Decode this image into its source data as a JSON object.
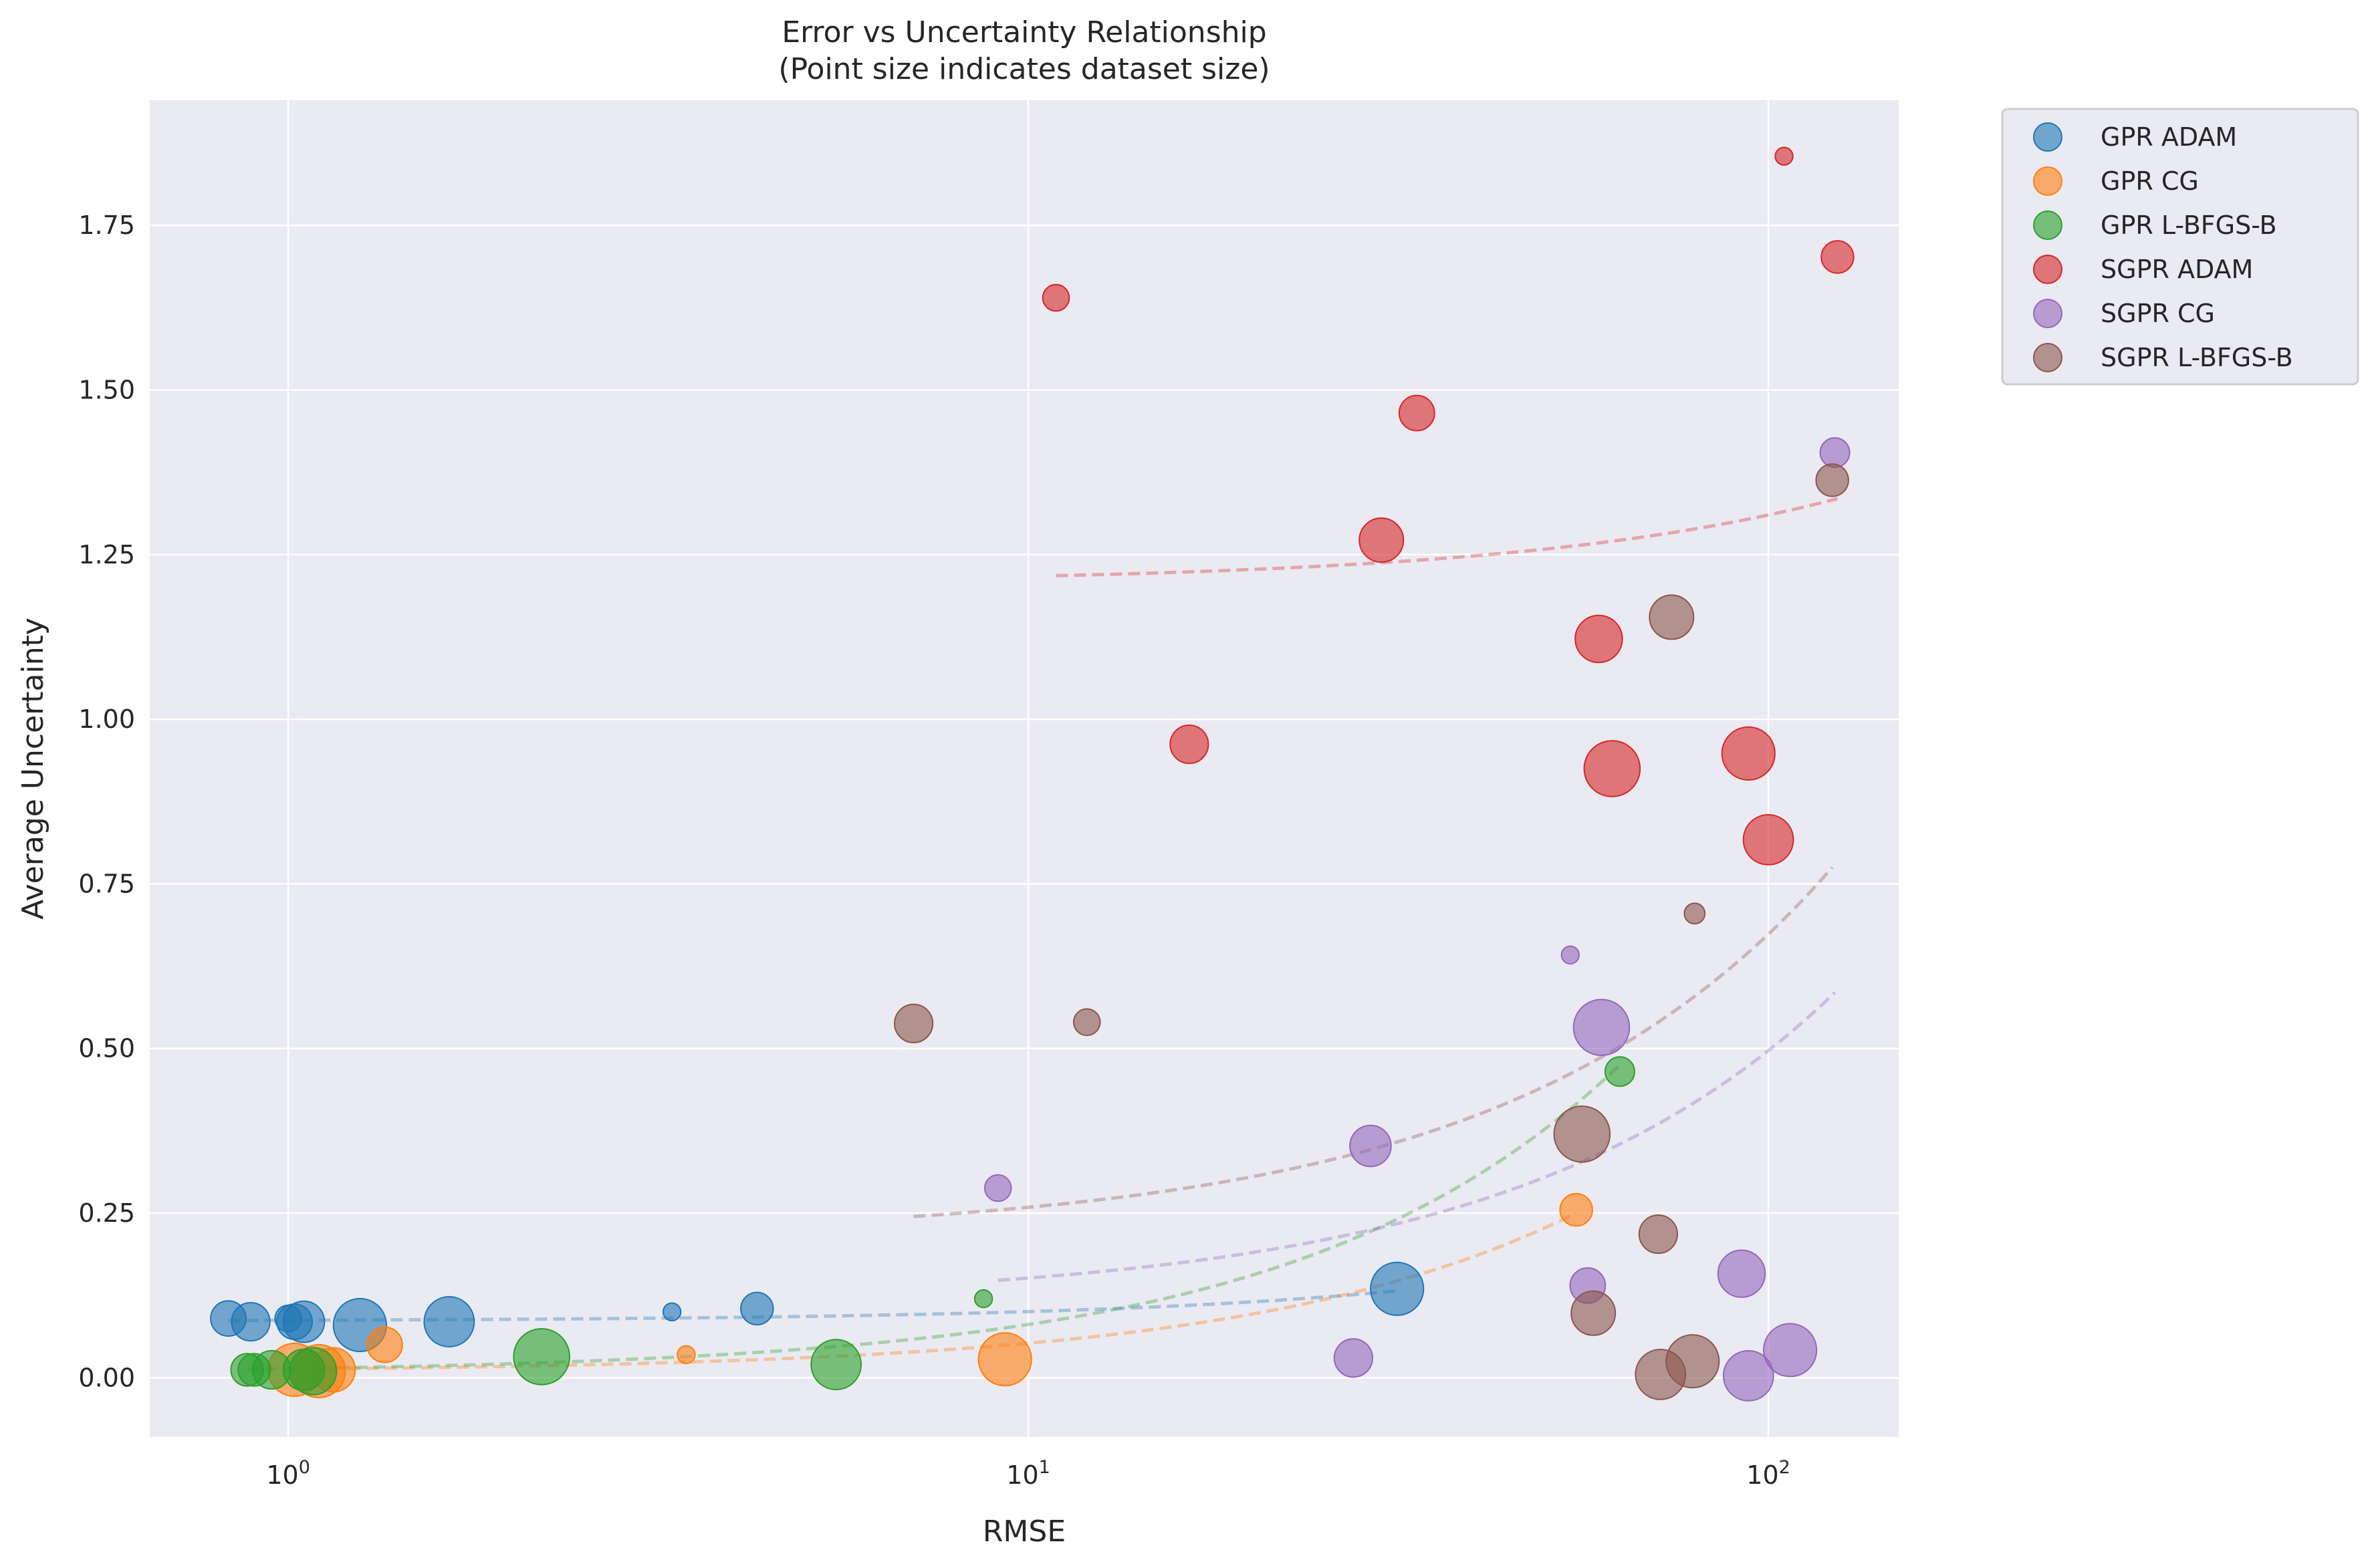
{
  "chart_data": {
    "type": "scatter",
    "title": "Error vs Uncertainty Relationship",
    "subtitle": "(Point size indicates dataset size)",
    "xlabel": "RMSE",
    "ylabel": "Average Uncertainty",
    "xscale": "log",
    "xlim": [
      0.65,
      150
    ],
    "ylim": [
      -0.09,
      1.94
    ],
    "x_ticks": [
      {
        "v": 1,
        "b": "10",
        "e": "0"
      },
      {
        "v": 10,
        "b": "10",
        "e": "1"
      },
      {
        "v": 100,
        "b": "10",
        "e": "2"
      }
    ],
    "y_ticks": [
      {
        "v": 0,
        "label": "0.00"
      },
      {
        "v": 0.25,
        "label": "0.25"
      },
      {
        "v": 0.5,
        "label": "0.50"
      },
      {
        "v": 0.75,
        "label": "0.75"
      },
      {
        "v": 1.0,
        "label": "1.00"
      },
      {
        "v": 1.25,
        "label": "1.25"
      },
      {
        "v": 1.5,
        "label": "1.50"
      },
      {
        "v": 1.75,
        "label": "1.75"
      }
    ],
    "grid": true,
    "legend_position": "outside-top-right",
    "size_encodes": "dataset size (relative marker size)",
    "series": [
      {
        "name": "GPR ADAM",
        "color": "#1f77b4",
        "points": [
          {
            "x": 0.83,
            "y": 0.09,
            "s": 12
          },
          {
            "x": 0.89,
            "y": 0.085,
            "s": 13
          },
          {
            "x": 1.0,
            "y": 0.09,
            "s": 9
          },
          {
            "x": 1.02,
            "y": 0.085,
            "s": 12
          },
          {
            "x": 1.05,
            "y": 0.085,
            "s": 14
          },
          {
            "x": 1.25,
            "y": 0.08,
            "s": 18
          },
          {
            "x": 1.65,
            "y": 0.085,
            "s": 17
          },
          {
            "x": 3.3,
            "y": 0.1,
            "s": 6
          },
          {
            "x": 4.3,
            "y": 0.105,
            "s": 11
          },
          {
            "x": 31.5,
            "y": 0.135,
            "s": 18
          }
        ],
        "trend": {
          "x0": 0.83,
          "x1": 31.5,
          "y0": 0.087,
          "y1": 0.132
        }
      },
      {
        "name": "GPR CG",
        "color": "#ff7f0e",
        "points": [
          {
            "x": 1.02,
            "y": 0.012,
            "s": 18
          },
          {
            "x": 1.1,
            "y": 0.01,
            "s": 18
          },
          {
            "x": 1.15,
            "y": 0.012,
            "s": 15
          },
          {
            "x": 1.35,
            "y": 0.05,
            "s": 12
          },
          {
            "x": 3.45,
            "y": 0.035,
            "s": 6
          },
          {
            "x": 9.3,
            "y": 0.028,
            "s": 18
          },
          {
            "x": 55.0,
            "y": 0.255,
            "s": 11
          }
        ],
        "trend": {
          "x0": 1.02,
          "x1": 55.0,
          "y0": 0.013,
          "y1": 0.25
        }
      },
      {
        "name": "GPR L-BFGS-B",
        "color": "#2ca02c",
        "points": [
          {
            "x": 0.88,
            "y": 0.012,
            "s": 11
          },
          {
            "x": 0.9,
            "y": 0.012,
            "s": 11
          },
          {
            "x": 0.95,
            "y": 0.012,
            "s": 13
          },
          {
            "x": 1.05,
            "y": 0.012,
            "s": 14
          },
          {
            "x": 1.08,
            "y": 0.01,
            "s": 16
          },
          {
            "x": 2.2,
            "y": 0.032,
            "s": 19
          },
          {
            "x": 5.5,
            "y": 0.02,
            "s": 17
          },
          {
            "x": 8.7,
            "y": 0.12,
            "s": 6
          },
          {
            "x": 63.0,
            "y": 0.465,
            "s": 10
          }
        ],
        "trend": {
          "x0": 0.88,
          "x1": 63.0,
          "y0": 0.013,
          "y1": 0.475
        }
      },
      {
        "name": "SGPR ADAM",
        "color": "#d62728",
        "points": [
          {
            "x": 10.9,
            "y": 1.64,
            "s": 9
          },
          {
            "x": 16.5,
            "y": 0.962,
            "s": 13
          },
          {
            "x": 30.0,
            "y": 1.272,
            "s": 15
          },
          {
            "x": 33.5,
            "y": 1.465,
            "s": 12
          },
          {
            "x": 59.0,
            "y": 1.122,
            "s": 16
          },
          {
            "x": 61.5,
            "y": 0.925,
            "s": 19
          },
          {
            "x": 94.0,
            "y": 0.948,
            "s": 18
          },
          {
            "x": 100.0,
            "y": 0.817,
            "s": 17
          },
          {
            "x": 105.0,
            "y": 1.855,
            "s": 6
          },
          {
            "x": 124.0,
            "y": 1.702,
            "s": 11
          }
        ],
        "trend": {
          "x0": 10.9,
          "x1": 124.0,
          "y0": 1.218,
          "y1": 1.335
        }
      },
      {
        "name": "SGPR CG",
        "color": "#9467bd",
        "points": [
          {
            "x": 9.1,
            "y": 0.288,
            "s": 9
          },
          {
            "x": 27.5,
            "y": 0.03,
            "s": 13
          },
          {
            "x": 29.0,
            "y": 0.352,
            "s": 14
          },
          {
            "x": 54.0,
            "y": 0.642,
            "s": 6
          },
          {
            "x": 57.0,
            "y": 0.14,
            "s": 12
          },
          {
            "x": 59.5,
            "y": 0.532,
            "s": 19
          },
          {
            "x": 92.0,
            "y": 0.158,
            "s": 16
          },
          {
            "x": 94.0,
            "y": 0.003,
            "s": 17
          },
          {
            "x": 107.0,
            "y": 0.042,
            "s": 18
          },
          {
            "x": 123.0,
            "y": 1.405,
            "s": 10
          }
        ],
        "trend": {
          "x0": 9.1,
          "x1": 123.0,
          "y0": 0.148,
          "y1": 0.585
        }
      },
      {
        "name": "SGPR L-BFGS-B",
        "color": "#8c564b",
        "points": [
          {
            "x": 7.0,
            "y": 0.538,
            "s": 13
          },
          {
            "x": 12.0,
            "y": 0.54,
            "s": 9
          },
          {
            "x": 56.0,
            "y": 0.37,
            "s": 19
          },
          {
            "x": 58.0,
            "y": 0.098,
            "s": 15
          },
          {
            "x": 71.0,
            "y": 0.218,
            "s": 13
          },
          {
            "x": 71.5,
            "y": 0.005,
            "s": 17
          },
          {
            "x": 74.0,
            "y": 1.155,
            "s": 15
          },
          {
            "x": 79.0,
            "y": 0.025,
            "s": 18
          },
          {
            "x": 79.5,
            "y": 0.705,
            "s": 7
          },
          {
            "x": 122.0,
            "y": 1.363,
            "s": 11
          }
        ],
        "trend": {
          "x0": 7.0,
          "x1": 122.0,
          "y0": 0.245,
          "y1": 0.775
        }
      }
    ]
  }
}
